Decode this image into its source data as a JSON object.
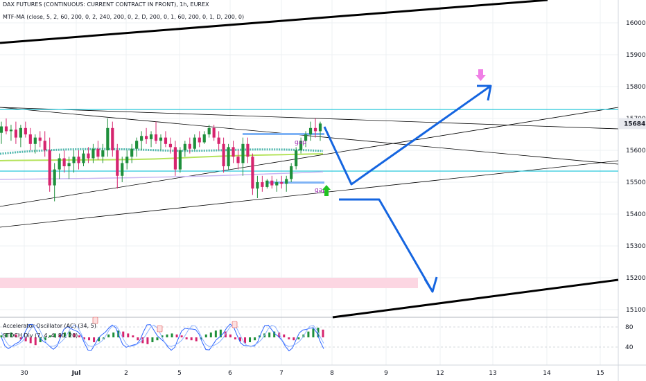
{
  "header": {
    "title": "DAX FUTURES (CONTINUOUS: CURRENT CONTRACT IN FRONT), 1h, EUREX",
    "indicator": "MTF-MA (close, 5, 2, 60, 200, 0, 2, 240, 200, 0, 2, D, 200, 0, 1, 60, 200, 0, 1, D, 200, 0)"
  },
  "subpanel": {
    "ac_label": "Accelerator Oscillator (AC) (34, 5)",
    "stoch_label": "STOCH Div (7, 4, 4, 80, 20)",
    "levels": [
      "80",
      "40"
    ]
  },
  "colors": {
    "up": "#1e8f3b",
    "down": "#d6246e",
    "cyan": "#26c6da",
    "arrow_blue": "#1565e0",
    "green_arrow": "#21c321",
    "pink_arrow": "#f07fe6",
    "pink_zone": "#fcd6e2",
    "price_badge": "#e8eaef"
  },
  "chart_data": {
    "type": "candlestick",
    "instrument": "DAX FUTURES (CONTINUOUS: CURRENT CONTRACT IN FRONT)",
    "interval": "1h",
    "exchange": "EUREX",
    "x_ticks": [
      "30",
      "Jul",
      "2",
      "5",
      "6",
      "7",
      "8",
      "9",
      "12",
      "13",
      "14",
      "15"
    ],
    "y_ticks": [
      16000,
      15900,
      15800,
      15700,
      15600,
      15500,
      15400,
      15300,
      15200,
      15100
    ],
    "y_range": [
      15070,
      16070
    ],
    "last_price": 15684,
    "annotations": [
      "gap",
      "gap"
    ],
    "ohlc_points": [
      {
        "o": 15655,
        "h": 15690,
        "l": 15620,
        "c": 15675
      },
      {
        "o": 15675,
        "h": 15700,
        "l": 15650,
        "c": 15660
      },
      {
        "o": 15660,
        "h": 15680,
        "l": 15630,
        "c": 15665
      },
      {
        "o": 15665,
        "h": 15690,
        "l": 15620,
        "c": 15640
      },
      {
        "o": 15640,
        "h": 15680,
        "l": 15610,
        "c": 15670
      },
      {
        "o": 15670,
        "h": 15690,
        "l": 15640,
        "c": 15650
      },
      {
        "o": 15650,
        "h": 15670,
        "l": 15600,
        "c": 15620
      },
      {
        "o": 15620,
        "h": 15650,
        "l": 15590,
        "c": 15640
      },
      {
        "o": 15640,
        "h": 15660,
        "l": 15610,
        "c": 15630
      },
      {
        "o": 15630,
        "h": 15660,
        "l": 15580,
        "c": 15600
      },
      {
        "o": 15600,
        "h": 15640,
        "l": 15470,
        "c": 15490
      },
      {
        "o": 15490,
        "h": 15560,
        "l": 15440,
        "c": 15540
      },
      {
        "o": 15540,
        "h": 15590,
        "l": 15510,
        "c": 15575
      },
      {
        "o": 15575,
        "h": 15600,
        "l": 15530,
        "c": 15550
      },
      {
        "o": 15550,
        "h": 15580,
        "l": 15510,
        "c": 15560
      },
      {
        "o": 15560,
        "h": 15600,
        "l": 15530,
        "c": 15580
      },
      {
        "o": 15580,
        "h": 15600,
        "l": 15540,
        "c": 15560
      },
      {
        "o": 15560,
        "h": 15600,
        "l": 15550,
        "c": 15590
      },
      {
        "o": 15590,
        "h": 15610,
        "l": 15560,
        "c": 15575
      },
      {
        "o": 15575,
        "h": 15620,
        "l": 15560,
        "c": 15605
      },
      {
        "o": 15605,
        "h": 15630,
        "l": 15570,
        "c": 15580
      },
      {
        "o": 15580,
        "h": 15620,
        "l": 15560,
        "c": 15600
      },
      {
        "o": 15600,
        "h": 15700,
        "l": 15580,
        "c": 15670
      },
      {
        "o": 15670,
        "h": 15690,
        "l": 15580,
        "c": 15600
      },
      {
        "o": 15600,
        "h": 15620,
        "l": 15480,
        "c": 15520
      },
      {
        "o": 15520,
        "h": 15580,
        "l": 15500,
        "c": 15560
      },
      {
        "o": 15560,
        "h": 15600,
        "l": 15540,
        "c": 15580
      },
      {
        "o": 15580,
        "h": 15620,
        "l": 15560,
        "c": 15605
      },
      {
        "o": 15605,
        "h": 15640,
        "l": 15580,
        "c": 15630
      },
      {
        "o": 15630,
        "h": 15660,
        "l": 15600,
        "c": 15645
      },
      {
        "o": 15645,
        "h": 15670,
        "l": 15620,
        "c": 15635
      },
      {
        "o": 15635,
        "h": 15660,
        "l": 15610,
        "c": 15650
      },
      {
        "o": 15650,
        "h": 15690,
        "l": 15620,
        "c": 15630
      },
      {
        "o": 15630,
        "h": 15650,
        "l": 15600,
        "c": 15640
      },
      {
        "o": 15640,
        "h": 15660,
        "l": 15610,
        "c": 15620
      },
      {
        "o": 15620,
        "h": 15640,
        "l": 15590,
        "c": 15610
      },
      {
        "o": 15610,
        "h": 15630,
        "l": 15520,
        "c": 15540
      },
      {
        "o": 15540,
        "h": 15610,
        "l": 15530,
        "c": 15600
      },
      {
        "o": 15600,
        "h": 15630,
        "l": 15580,
        "c": 15620
      },
      {
        "o": 15620,
        "h": 15640,
        "l": 15590,
        "c": 15605
      },
      {
        "o": 15605,
        "h": 15650,
        "l": 15600,
        "c": 15640
      },
      {
        "o": 15640,
        "h": 15660,
        "l": 15610,
        "c": 15625
      },
      {
        "o": 15625,
        "h": 15660,
        "l": 15620,
        "c": 15650
      },
      {
        "o": 15650,
        "h": 15680,
        "l": 15640,
        "c": 15670
      },
      {
        "o": 15670,
        "h": 15680,
        "l": 15630,
        "c": 15640
      },
      {
        "o": 15640,
        "h": 15660,
        "l": 15600,
        "c": 15620
      },
      {
        "o": 15620,
        "h": 15640,
        "l": 15530,
        "c": 15550
      },
      {
        "o": 15550,
        "h": 15620,
        "l": 15540,
        "c": 15610
      },
      {
        "o": 15610,
        "h": 15630,
        "l": 15560,
        "c": 15580
      },
      {
        "o": 15580,
        "h": 15600,
        "l": 15540,
        "c": 15560
      },
      {
        "o": 15560,
        "h": 15640,
        "l": 15520,
        "c": 15620
      },
      {
        "o": 15620,
        "h": 15640,
        "l": 15560,
        "c": 15580
      },
      {
        "o": 15580,
        "h": 15590,
        "l": 15460,
        "c": 15480
      },
      {
        "o": 15480,
        "h": 15520,
        "l": 15450,
        "c": 15500
      },
      {
        "o": 15500,
        "h": 15520,
        "l": 15470,
        "c": 15485
      },
      {
        "o": 15485,
        "h": 15510,
        "l": 15480,
        "c": 15505
      },
      {
        "o": 15505,
        "h": 15520,
        "l": 15480,
        "c": 15490
      },
      {
        "o": 15490,
        "h": 15510,
        "l": 15470,
        "c": 15500
      },
      {
        "o": 15500,
        "h": 15520,
        "l": 15480,
        "c": 15495
      },
      {
        "o": 15495,
        "h": 15520,
        "l": 15470,
        "c": 15510
      },
      {
        "o": 15510,
        "h": 15560,
        "l": 15500,
        "c": 15550
      },
      {
        "o": 15550,
        "h": 15610,
        "l": 15540,
        "c": 15600
      },
      {
        "o": 15600,
        "h": 15640,
        "l": 15590,
        "c": 15630
      },
      {
        "o": 15630,
        "h": 15660,
        "l": 15610,
        "c": 15650
      },
      {
        "o": 15650,
        "h": 15690,
        "l": 15630,
        "c": 15670
      },
      {
        "o": 15670,
        "h": 15700,
        "l": 15640,
        "c": 15660
      },
      {
        "o": 15660,
        "h": 15690,
        "l": 15630,
        "c": 15684
      }
    ]
  }
}
